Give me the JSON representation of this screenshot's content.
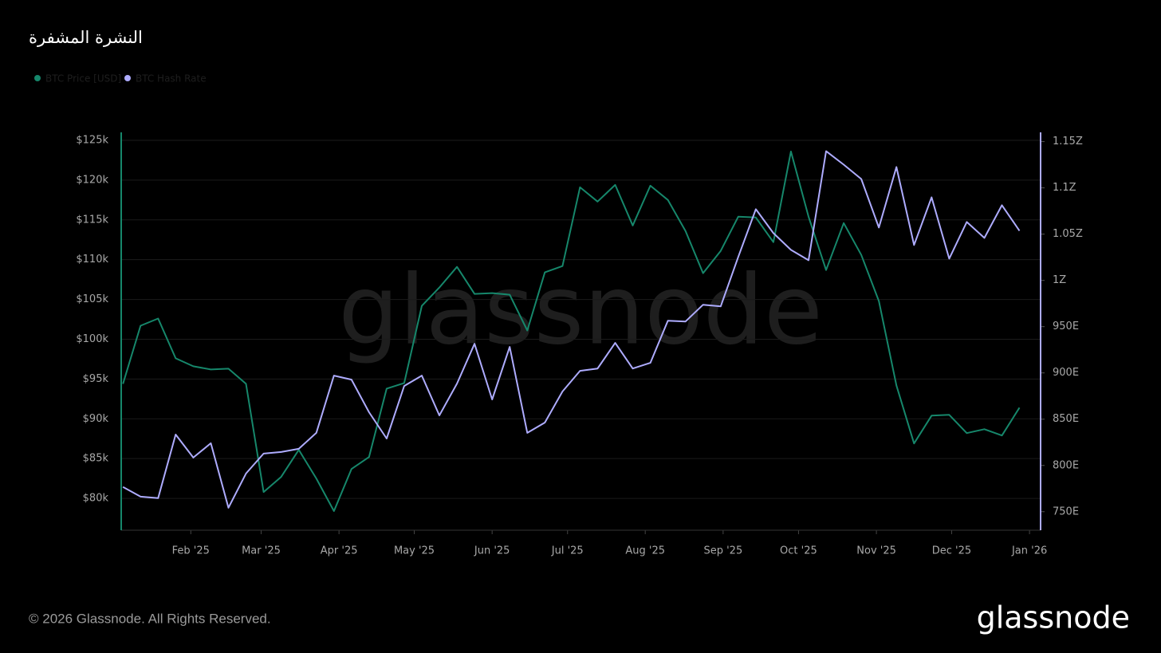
{
  "chart_data": {
    "type": "line",
    "title": "النشرة المشفرة",
    "xlim": [
      -0.1,
      52.2
    ],
    "xticks": [
      {
        "value": 3.86,
        "label": "Feb '25"
      },
      {
        "value": 7.86,
        "label": "Mar '25"
      },
      {
        "value": 12.29,
        "label": "Apr '25"
      },
      {
        "value": 16.57,
        "label": "May '25"
      },
      {
        "value": 21.0,
        "label": "Jun '25"
      },
      {
        "value": 25.29,
        "label": "Jul '25"
      },
      {
        "value": 29.71,
        "label": "Aug '25"
      },
      {
        "value": 34.14,
        "label": "Sep '25"
      },
      {
        "value": 38.43,
        "label": "Oct '25"
      },
      {
        "value": 42.86,
        "label": "Nov '25"
      },
      {
        "value": 47.14,
        "label": "Dec '25"
      },
      {
        "value": 51.57,
        "label": "Jan '26"
      }
    ],
    "ylim": [
      76000,
      126000
    ],
    "yticks": [
      {
        "value": 80000,
        "label": "$80k"
      },
      {
        "value": 85000,
        "label": "$85k"
      },
      {
        "value": 90000,
        "label": "$90k"
      },
      {
        "value": 95000,
        "label": "$95k"
      },
      {
        "value": 100000,
        "label": "$100k"
      },
      {
        "value": 105000,
        "label": "$105k"
      },
      {
        "value": 110000,
        "label": "$110k"
      },
      {
        "value": 115000,
        "label": "$115k"
      },
      {
        "value": 120000,
        "label": "$120k"
      },
      {
        "value": 125000,
        "label": "$125k"
      }
    ],
    "y2lim": [
      730,
      1160
    ],
    "y2ticks": [
      {
        "value": 750,
        "label": "750E"
      },
      {
        "value": 800,
        "label": "800E"
      },
      {
        "value": 850,
        "label": "850E"
      },
      {
        "value": 900,
        "label": "900E"
      },
      {
        "value": 950,
        "label": "950E"
      },
      {
        "value": 1000,
        "label": "1Z"
      },
      {
        "value": 1050,
        "label": "1.05Z"
      },
      {
        "value": 1100,
        "label": "1.1Z"
      },
      {
        "value": 1150,
        "label": "1.15Z"
      }
    ],
    "grid": true,
    "series": [
      {
        "name": "BTC Price [USD]",
        "color": "#16876b",
        "values": [
          94400,
          101700,
          102600,
          97600,
          96600,
          96200,
          96300,
          94400,
          80800,
          82700,
          86100,
          82500,
          78400,
          83700,
          85200,
          93800,
          94500,
          104200,
          106500,
          109100,
          105700,
          105800,
          105600,
          101100,
          108400,
          109200,
          119100,
          117300,
          119400,
          114300,
          119300,
          117500,
          113600,
          108300,
          111100,
          115400,
          115300,
          112200,
          123600,
          115400,
          108700,
          114600,
          110600,
          104800,
          94200,
          86900,
          90400,
          90500,
          88200,
          88700,
          87900,
          91400
        ]
      },
      {
        "name": "BTC Hash Rate",
        "color": "#aeacff",
        "axis": "y2",
        "values": [
          776.7,
          766.3,
          764.6,
          833.4,
          808.5,
          824.0,
          754.3,
          791.3,
          812.8,
          814.5,
          818.0,
          835.2,
          897.1,
          892.8,
          857.5,
          829.1,
          885.9,
          897.1,
          854.1,
          888.5,
          931.5,
          871.3,
          928.1,
          835.2,
          846.3,
          879.9,
          902.3,
          904.8,
          932.4,
          904.8,
          910.9,
          956.5,
          955.6,
          973.7,
          971.9,
          1025.3,
          1076.9,
          1051.1,
          1033.0,
          1021.8,
          1139.7,
          1125.1,
          1109.6,
          1057.1,
          1122.5,
          1038.2,
          1089.8,
          1023.5,
          1063.1,
          1045.9,
          1081.2,
          1053.7
        ]
      }
    ]
  },
  "watermark": "glassnode",
  "footer": {
    "copyright": "© 2026 Glassnode. All Rights Reserved.",
    "logo": "glassnode"
  }
}
